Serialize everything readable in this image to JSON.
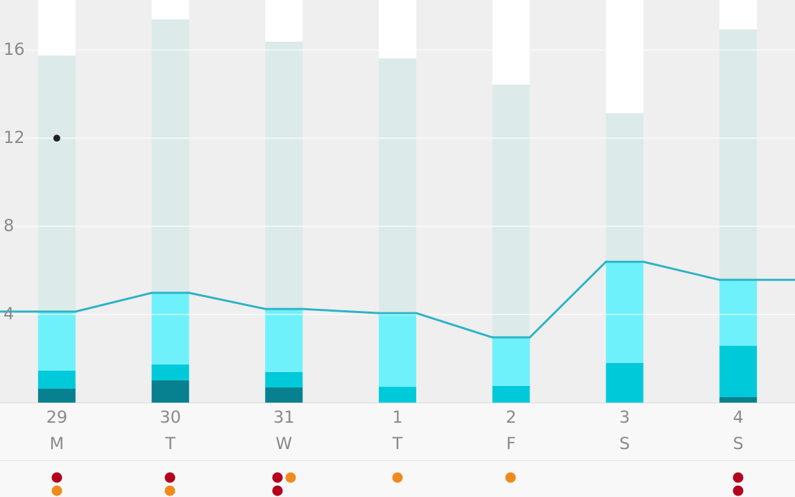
{
  "chart_data": {
    "type": "stacked-bar",
    "categories": [
      "29",
      "30",
      "31",
      "1",
      "2",
      "3",
      "4"
    ],
    "weekdays": [
      "M",
      "T",
      "W",
      "T",
      "F",
      "S",
      "S"
    ],
    "series": [
      {
        "color": "#07808f",
        "values": [
          0.63,
          1.01,
          0.69,
          0,
          0,
          0,
          0.25
        ]
      },
      {
        "color": "#00cad9",
        "values": [
          0.82,
          0.72,
          0.7,
          0.72,
          0.76,
          1.8,
          2.33
        ]
      },
      {
        "color": "#6ff1fb",
        "values": [
          2.68,
          3.25,
          2.86,
          3.34,
          2.2,
          4.59,
          2.99
        ]
      },
      {
        "color": "#dceaea",
        "values": [
          11.62,
          12.41,
          12.13,
          11.56,
          11.47,
          6.74,
          11.37
        ]
      },
      {
        "color": "#ffffff",
        "values": [
          2.55,
          0.91,
          1.92,
          2.68,
          3.87,
          5.17,
          1.36
        ]
      }
    ],
    "marker": {
      "color": "#222222",
      "values": [
        12,
        null,
        null,
        null,
        null,
        null,
        null
      ]
    },
    "line_color": "#2cb3c6",
    "ylim": [
      0,
      18.27
    ],
    "yticks": [
      4,
      8,
      12,
      16
    ],
    "grid": true
  }
}
